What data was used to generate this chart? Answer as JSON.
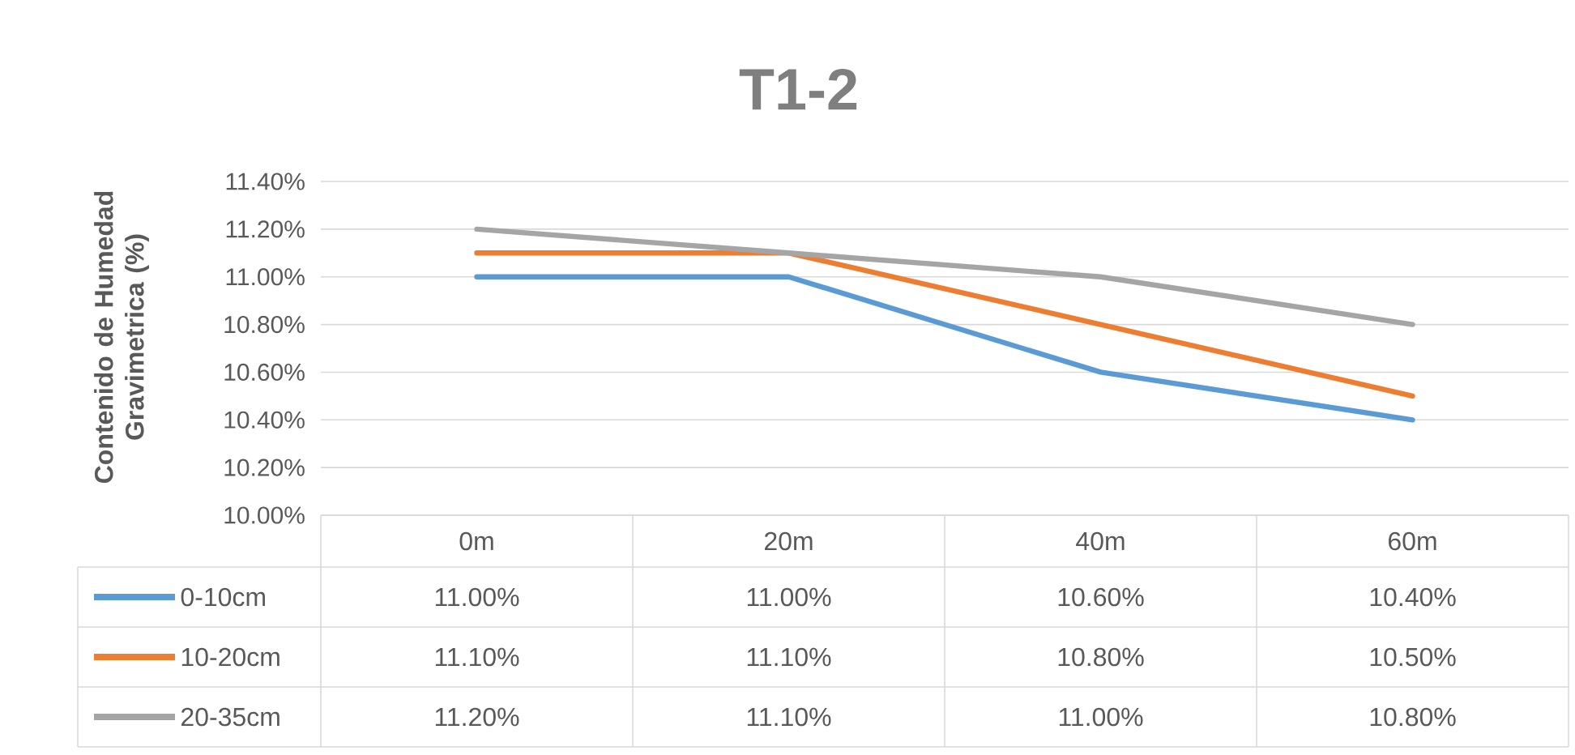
{
  "chart_data": {
    "type": "line",
    "title": "T1-2",
    "ylabel": "Contenido de Humedad Gravimetrica (%)",
    "categories": [
      "0m",
      "20m",
      "40m",
      "60m"
    ],
    "series": [
      {
        "name": "0-10cm",
        "color": "#5b9bd5",
        "values": [
          11.0,
          11.0,
          10.6,
          10.4
        ],
        "value_labels": [
          "11.00%",
          "11.00%",
          "10.60%",
          "10.40%"
        ]
      },
      {
        "name": "10-20cm",
        "color": "#ed7d31",
        "values": [
          11.1,
          11.1,
          10.8,
          10.5
        ],
        "value_labels": [
          "11.10%",
          "11.10%",
          "10.80%",
          "10.50%"
        ]
      },
      {
        "name": "20-35cm",
        "color": "#a5a5a5",
        "values": [
          11.2,
          11.1,
          11.0,
          10.8
        ],
        "value_labels": [
          "11.20%",
          "11.10%",
          "11.00%",
          "10.80%"
        ]
      }
    ],
    "ylim": [
      10.0,
      11.4
    ],
    "yticks": [
      {
        "value": 10.0,
        "label": "10.00%"
      },
      {
        "value": 10.2,
        "label": "10.20%"
      },
      {
        "value": 10.4,
        "label": "10.40%"
      },
      {
        "value": 10.6,
        "label": "10.60%"
      },
      {
        "value": 10.8,
        "label": "10.80%"
      },
      {
        "value": 11.0,
        "label": "11.00%"
      },
      {
        "value": 11.2,
        "label": "11.20%"
      },
      {
        "value": 11.4,
        "label": "11.40%"
      }
    ],
    "grid": "y",
    "legend": "bottom",
    "marker": "none",
    "line_style": "solid"
  }
}
